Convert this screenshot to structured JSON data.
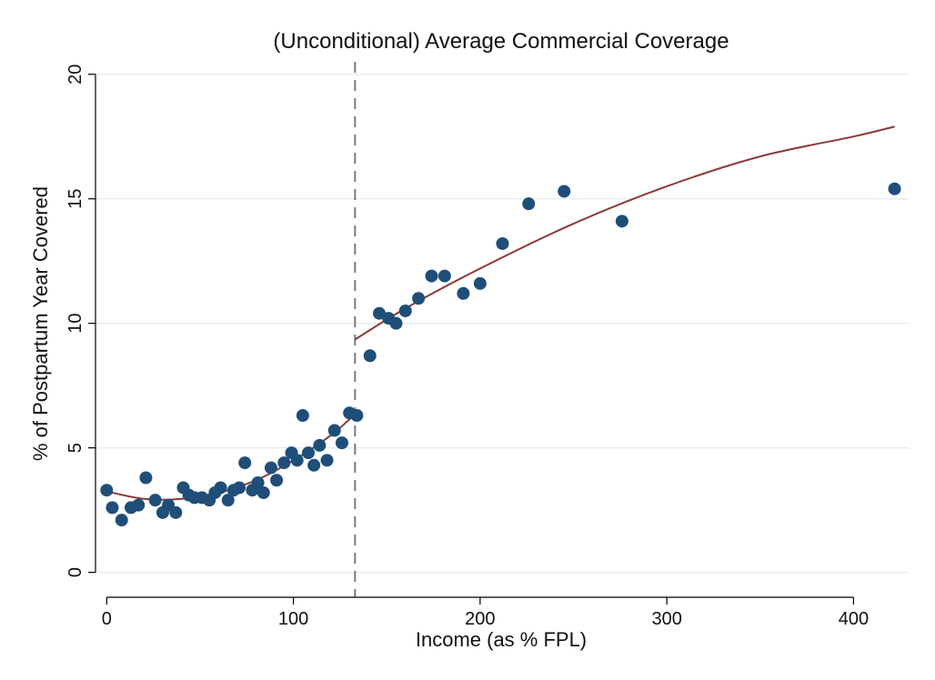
{
  "chart_data": {
    "type": "scatter",
    "title": "(Unconditional) Average Commercial Coverage",
    "xlabel": "Income (as % FPL)",
    "ylabel": "% of Postpartum Year Covered",
    "xlim": [
      -6,
      430
    ],
    "ylim": [
      -1,
      20.5
    ],
    "xticks": [
      0,
      100,
      200,
      300,
      400
    ],
    "yticks": [
      0,
      5,
      10,
      15,
      20
    ],
    "grid": true,
    "legend": "none",
    "cutoff_x": 133,
    "colors": {
      "points": "#1f4e79",
      "fit_line": "#8b3a3a",
      "cutoff_line": "#7a7a7a",
      "grid": "#e6ecef"
    },
    "series": [
      {
        "kind": "points",
        "x": [
          0,
          3,
          8,
          13,
          17,
          21,
          26,
          30,
          33,
          37,
          41,
          44,
          47,
          51,
          55,
          58,
          61,
          65,
          68,
          71,
          74,
          78,
          81,
          84,
          88,
          91,
          95,
          99,
          102,
          105,
          108,
          111,
          114,
          118,
          122,
          126,
          130,
          134,
          141,
          146,
          151,
          155,
          160,
          167,
          174,
          181,
          191,
          200,
          212,
          226,
          245,
          276,
          422
        ],
        "y": [
          3.3,
          2.6,
          2.1,
          2.6,
          2.7,
          3.8,
          2.9,
          2.4,
          2.7,
          2.4,
          3.4,
          3.1,
          3.0,
          3.0,
          2.9,
          3.2,
          3.4,
          2.9,
          3.3,
          3.4,
          4.4,
          3.3,
          3.6,
          3.2,
          4.2,
          3.7,
          4.4,
          4.8,
          4.5,
          6.3,
          4.8,
          4.3,
          5.1,
          4.5,
          5.7,
          5.2,
          6.4,
          6.3,
          8.7,
          10.4,
          10.2,
          10.0,
          10.5,
          11.0,
          11.9,
          11.9,
          11.2,
          11.6,
          13.2,
          14.8,
          15.3,
          14.1,
          15.4
        ]
      },
      {
        "kind": "fit_left",
        "x": [
          0,
          20,
          40,
          60,
          80,
          100,
          120,
          133
        ],
        "y": [
          3.25,
          2.95,
          2.95,
          3.2,
          3.7,
          4.5,
          5.5,
          6.35
        ]
      },
      {
        "kind": "fit_right",
        "x": [
          133,
          160,
          200,
          250,
          300,
          350,
          400,
          422
        ],
        "y": [
          9.35,
          10.6,
          12.2,
          14.0,
          15.5,
          16.7,
          17.5,
          17.9
        ]
      }
    ]
  }
}
